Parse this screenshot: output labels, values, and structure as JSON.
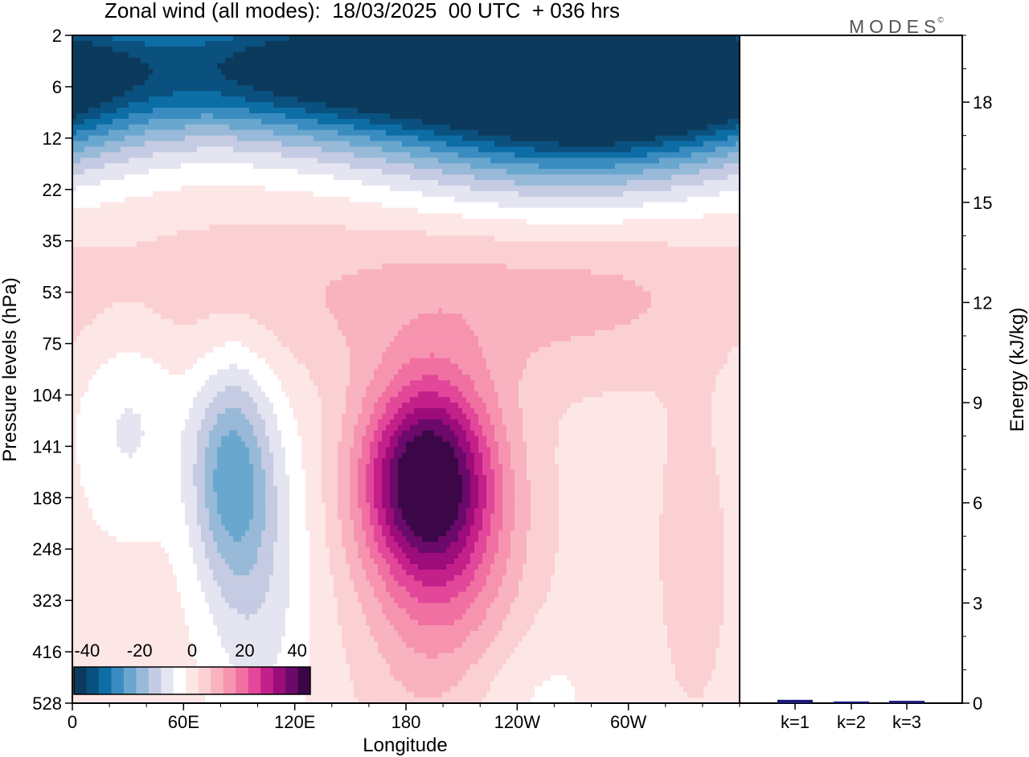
{
  "title": "Zonal wind (all modes):  18/03/2025  00 UTC  + 036 hrs",
  "brand": "MODES",
  "brand_mark": "©",
  "colors": {
    "scale": [
      "#0c3a5c",
      "#0a517f",
      "#0d6ea6",
      "#3a8cc0",
      "#6aa7cf",
      "#98b9d8",
      "#c5cbe2",
      "#e4e5f1",
      "#ffffff",
      "#fde6e6",
      "#fbd0d3",
      "#f9b3c0",
      "#f694b0",
      "#f070a1",
      "#e2479a",
      "#c4208a",
      "#9c0c7a",
      "#6b0a6a",
      "#3c0747"
    ],
    "bar": "#1a1a7a"
  },
  "chart_data": [
    {
      "type": "heatmap",
      "title": "Zonal wind (all modes):  18/03/2025  00 UTC  + 036 hrs",
      "xlabel": "Longitude",
      "ylabel": "Pressure levels (hPa)",
      "x_ticks": [
        "0",
        "60E",
        "120E",
        "180",
        "120W",
        "60W"
      ],
      "y_ticks": [
        "2",
        "6",
        "12",
        "22",
        "35",
        "53",
        "75",
        "104",
        "141",
        "188",
        "248",
        "323",
        "416",
        "528"
      ],
      "colorbar": {
        "ticks": [
          "-40",
          "-20",
          "0",
          "20",
          "40"
        ],
        "range": [
          -45,
          45
        ]
      },
      "features": [
        {
          "lon": 140,
          "level": 0.6,
          "value": -45,
          "slon": 90,
          "slev": 1.0
        },
        {
          "lon": 260,
          "level": 1.4,
          "value": -30,
          "slon": 70,
          "slev": 1.3
        },
        {
          "lon": 320,
          "level": 0.8,
          "value": -38,
          "slon": 55,
          "slev": 1.0
        },
        {
          "lon": 190,
          "level": 8.6,
          "value": 36,
          "slon": 24,
          "slev": 1.3
        },
        {
          "lon": 200,
          "level": 10.0,
          "value": 18,
          "slon": 30,
          "slev": 2.4
        },
        {
          "lon": 85,
          "level": 8.5,
          "value": -20,
          "slon": 15,
          "slev": 1.5
        },
        {
          "lon": 100,
          "level": 10.5,
          "value": -10,
          "slon": 20,
          "slev": 2.5
        },
        {
          "lon": 30,
          "level": 7.5,
          "value": -8,
          "slon": 20,
          "slev": 1.5
        },
        {
          "lon": 150,
          "level": 5.0,
          "value": 7,
          "slon": 100,
          "slev": 1.2
        },
        {
          "lon": 290,
          "level": 5.0,
          "value": 6,
          "slon": 60,
          "slev": 1.2
        },
        {
          "lon": 335,
          "level": 10.0,
          "value": 7,
          "slon": 12,
          "slev": 2.0
        },
        {
          "lon": 240,
          "level": 12.8,
          "value": -5,
          "slon": 30,
          "slev": 1.0
        }
      ]
    },
    {
      "type": "bar",
      "categories": [
        "k=1",
        "k=2",
        "k=3"
      ],
      "values": [
        0.1,
        0.05,
        0.07
      ],
      "ylabel": "Energy (kJ/kg)",
      "y_ticks": [
        "0",
        "3",
        "6",
        "9",
        "12",
        "15",
        "18"
      ],
      "ylim": [
        0,
        20
      ]
    }
  ]
}
